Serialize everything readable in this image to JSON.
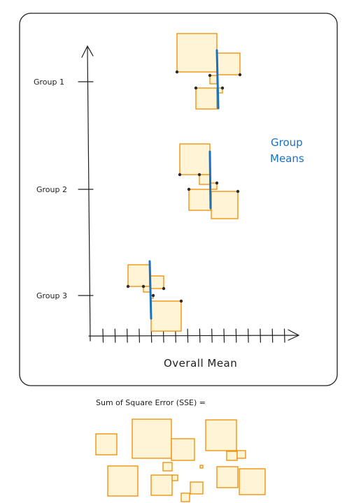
{
  "diagram": {
    "groups": [
      {
        "label": "Group 1"
      },
      {
        "label": "Group 2"
      },
      {
        "label": "Group 3"
      }
    ],
    "group_means_label_line1": "Group",
    "group_means_label_line2": "Means",
    "x_axis_label": "Overall Mean",
    "sse_label": "Sum of Square Error (SSE) =",
    "colors": {
      "square_fill": "#fff4d6",
      "square_stroke": "#f08c00",
      "mean_line": "#1971c2",
      "frame": "#1e1e1e"
    }
  }
}
